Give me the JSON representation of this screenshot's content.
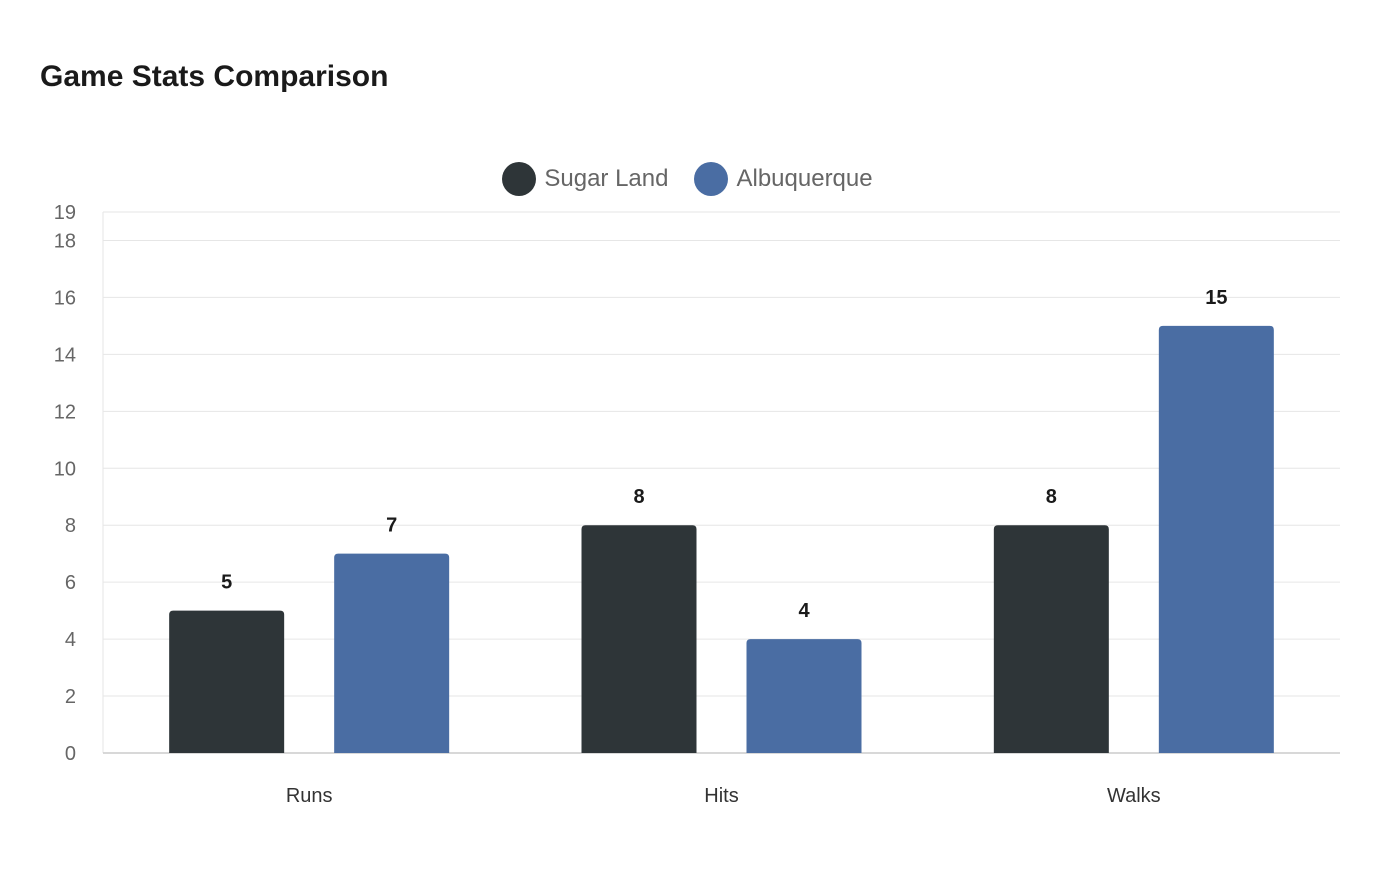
{
  "title": "Game Stats Comparison",
  "colors": {
    "sugar_land": "#2e3538",
    "albuquerque": "#4a6da3",
    "grid": "#e6e6e6",
    "axis": "#cccccc",
    "tick_text": "#666666",
    "category_text": "#333333",
    "value_label": "#1a1a1a"
  },
  "legend": [
    {
      "label": "Sugar Land",
      "color": "#2e3538"
    },
    {
      "label": "Albuquerque",
      "color": "#4a6da3"
    }
  ],
  "chart_data": {
    "type": "bar",
    "title": "Game Stats Comparison",
    "xlabel": "",
    "ylabel": "",
    "categories": [
      "Runs",
      "Hits",
      "Walks"
    ],
    "series": [
      {
        "name": "Sugar Land",
        "values": [
          5,
          8,
          8
        ],
        "color": "#2e3538"
      },
      {
        "name": "Albuquerque",
        "values": [
          7,
          4,
          15
        ],
        "color": "#4a6da3"
      }
    ],
    "ylim": [
      0,
      19
    ],
    "yticks": [
      0,
      2,
      4,
      6,
      8,
      10,
      12,
      14,
      16,
      18,
      19
    ],
    "grid": true,
    "legend_position": "top-center",
    "data_labels": true
  }
}
